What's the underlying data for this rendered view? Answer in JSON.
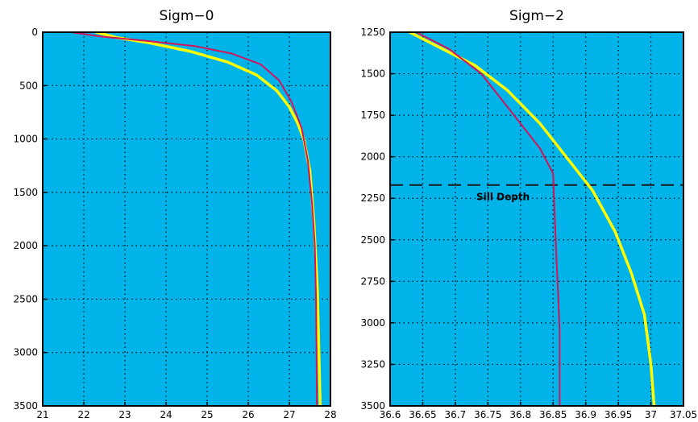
{
  "chart_data": [
    {
      "type": "line",
      "title": "Sigm−0",
      "xlabel": "",
      "ylabel": "",
      "xlim": [
        21,
        28
      ],
      "ylim": [
        3500,
        0
      ],
      "x_ticks": [
        "21",
        "22",
        "23",
        "24",
        "25",
        "26",
        "27",
        "28"
      ],
      "y_ticks": [
        "0",
        "500",
        "1000",
        "1500",
        "2000",
        "2500",
        "3000",
        "3500"
      ],
      "grid": true,
      "background_color": "#00b4ea",
      "series": [
        {
          "color": "#ffff00",
          "x": [
            22.3,
            22.8,
            23.6,
            24.6,
            25.5,
            26.2,
            26.7,
            27.0,
            27.2,
            27.35,
            27.5,
            27.6,
            27.68,
            27.72,
            27.75
          ],
          "y": [
            0,
            50,
            100,
            180,
            280,
            400,
            550,
            700,
            850,
            1000,
            1300,
            1800,
            2400,
            3000,
            3500
          ]
        },
        {
          "color": "#d4145a",
          "x": [
            21.7,
            22.4,
            23.5,
            24.7,
            25.6,
            26.3,
            26.75,
            27.05,
            27.3,
            27.45,
            27.55,
            27.62,
            27.65,
            27.66,
            27.67
          ],
          "y": [
            0,
            40,
            80,
            130,
            200,
            300,
            450,
            650,
            900,
            1200,
            1600,
            2000,
            2500,
            3000,
            3500
          ]
        }
      ]
    },
    {
      "type": "line",
      "title": "Sigm−2",
      "xlabel": "",
      "ylabel": "",
      "xlim": [
        36.6,
        37.05
      ],
      "ylim": [
        3500,
        1250
      ],
      "x_ticks": [
        "36.6",
        "36.65",
        "36.7",
        "36.75",
        "36.8",
        "36.85",
        "36.9",
        "36.95",
        "37",
        "37.05"
      ],
      "y_ticks": [
        "1250",
        "1500",
        "1750",
        "2000",
        "2250",
        "2500",
        "2750",
        "3000",
        "3250",
        "3500"
      ],
      "grid": true,
      "background_color": "#00b4ea",
      "annotations": [
        {
          "text": "Sill Depth",
          "y": 2170,
          "style": "dashed-line"
        }
      ],
      "series": [
        {
          "color": "#ffff00",
          "x": [
            36.63,
            36.68,
            36.73,
            36.78,
            36.83,
            36.87,
            36.91,
            36.945,
            36.97,
            36.99,
            37.0,
            37.005
          ],
          "y": [
            1250,
            1350,
            1450,
            1600,
            1800,
            2000,
            2200,
            2450,
            2700,
            2950,
            3250,
            3500
          ]
        },
        {
          "color": "#d4145a",
          "x": [
            36.64,
            36.69,
            36.74,
            36.77,
            36.8,
            36.83,
            36.85,
            36.852,
            36.855,
            36.858,
            36.86,
            36.86
          ],
          "y": [
            1250,
            1350,
            1500,
            1650,
            1800,
            1950,
            2100,
            2300,
            2600,
            2850,
            3050,
            3500
          ]
        }
      ]
    }
  ]
}
